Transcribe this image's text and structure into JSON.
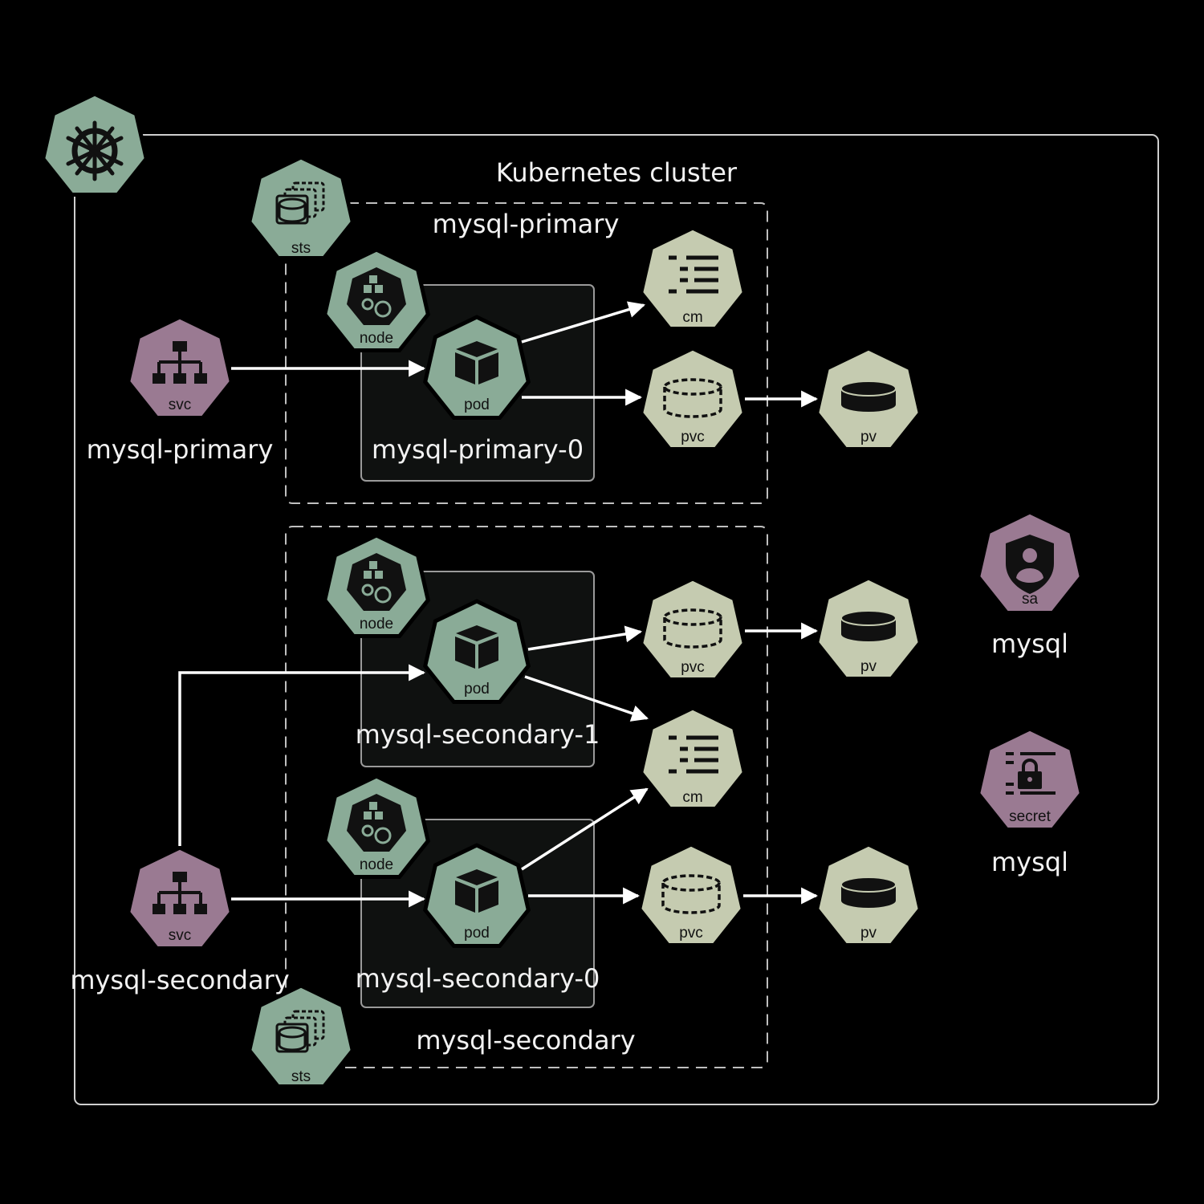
{
  "cluster": {
    "title": "Kubernetes cluster"
  },
  "primary": {
    "sts_group_title": "mysql-primary",
    "sts_label": "sts",
    "service": {
      "label": "svc",
      "name": "mysql-primary"
    },
    "node_label": "node",
    "pod": {
      "label": "pod",
      "name": "mysql-primary-0"
    },
    "cm_label": "cm",
    "pvc_label": "pvc",
    "pv_label": "pv"
  },
  "secondary": {
    "sts_group_title": "mysql-secondary",
    "sts_label": "sts",
    "service": {
      "label": "svc",
      "name": "mysql-secondary"
    },
    "pod1": {
      "node_label": "node",
      "label": "pod",
      "name": "mysql-secondary-1",
      "pvc_label": "pvc",
      "pv_label": "pv"
    },
    "pod0": {
      "node_label": "node",
      "label": "pod",
      "name": "mysql-secondary-0",
      "pvc_label": "pvc",
      "pv_label": "pv"
    },
    "cm_label": "cm"
  },
  "service_account": {
    "label": "sa",
    "name": "mysql"
  },
  "secret": {
    "label": "secret",
    "name": "mysql"
  },
  "colors": {
    "green": "#8aab97",
    "tan": "#c5cbb0",
    "purple": "#9a7a92",
    "background": "#000000",
    "line": "#ffffff"
  }
}
